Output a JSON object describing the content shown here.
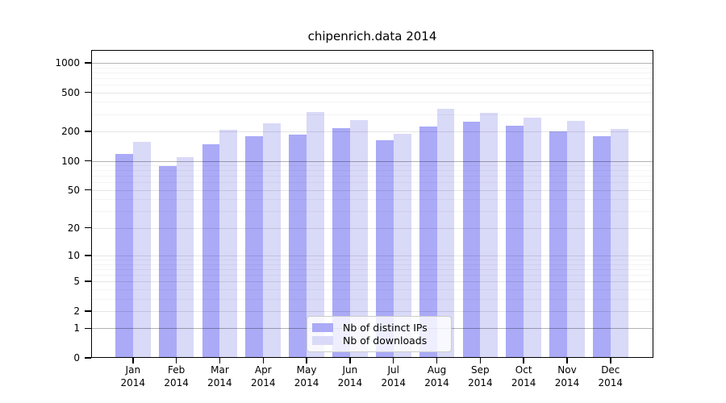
{
  "chart_data": {
    "type": "bar",
    "title": "chipenrich.data 2014",
    "categories": [
      "Jan",
      "Feb",
      "Mar",
      "Apr",
      "May",
      "Jun",
      "Jul",
      "Aug",
      "Sep",
      "Oct",
      "Nov",
      "Dec"
    ],
    "category_year": "2014",
    "series": [
      {
        "name": "Nb of distinct IPs",
        "color": "#aaaaf7",
        "values": [
          118,
          89,
          149,
          178,
          185,
          217,
          163,
          223,
          250,
          228,
          201,
          180
        ]
      },
      {
        "name": "Nb of downloads",
        "color": "#d9d9f8",
        "values": [
          156,
          109,
          209,
          240,
          317,
          262,
          188,
          338,
          310,
          278,
          256,
          211
        ]
      }
    ],
    "xlabel": "",
    "ylabel": "",
    "y_scale": "log1p",
    "ylim": [
      0,
      1000
    ],
    "y_ticks": [
      0,
      1,
      2,
      5,
      10,
      20,
      50,
      100,
      200,
      500,
      1000
    ],
    "y_minor_gridlines": [
      3,
      4,
      6,
      7,
      8,
      9,
      30,
      40,
      60,
      70,
      80,
      90,
      300,
      400,
      600,
      700,
      800,
      900
    ],
    "y_emphasized_gridlines": [
      1,
      100,
      1000
    ],
    "grid": true,
    "legend_position": "bottom-center"
  }
}
